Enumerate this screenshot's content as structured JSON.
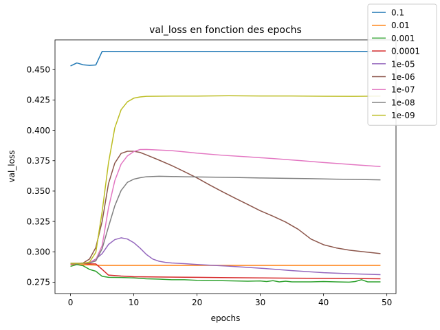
{
  "chart_data": {
    "type": "line",
    "title": "val_loss en fonction des epochs",
    "xlabel": "epochs",
    "ylabel": "val_loss",
    "xlim": [
      -2.45,
      51.45
    ],
    "ylim": [
      0.2656,
      0.4745
    ],
    "xticks": [
      0,
      10,
      20,
      30,
      40,
      50
    ],
    "yticks": [
      0.275,
      0.3,
      0.325,
      0.35,
      0.375,
      0.4,
      0.425,
      0.45
    ],
    "ytick_labels": [
      "0.275",
      "0.300",
      "0.325",
      "0.350",
      "0.375",
      "0.400",
      "0.425",
      "0.450"
    ],
    "grid": false,
    "legend_position": "top-right",
    "series": [
      {
        "name": "0.1",
        "color": "#1f77b4",
        "points": [
          [
            0,
            0.453
          ],
          [
            1,
            0.4555
          ],
          [
            2,
            0.454
          ],
          [
            3,
            0.4535
          ],
          [
            4,
            0.4538
          ],
          [
            5,
            0.465
          ],
          [
            49,
            0.465
          ]
        ]
      },
      {
        "name": "0.01",
        "color": "#ff7f0e",
        "points": [
          [
            0,
            0.2895
          ],
          [
            1,
            0.2895
          ],
          [
            2,
            0.2893
          ],
          [
            3,
            0.2892
          ],
          [
            4,
            0.289
          ],
          [
            5,
            0.2888
          ],
          [
            49,
            0.2888
          ]
        ]
      },
      {
        "name": "0.001",
        "color": "#2ca02c",
        "points": [
          [
            0,
            0.288
          ],
          [
            1,
            0.2895
          ],
          [
            2,
            0.2885
          ],
          [
            3,
            0.2855
          ],
          [
            4,
            0.284
          ],
          [
            5,
            0.2798
          ],
          [
            6,
            0.279
          ],
          [
            8,
            0.2788
          ],
          [
            10,
            0.2785
          ],
          [
            12,
            0.2778
          ],
          [
            14,
            0.2775
          ],
          [
            16,
            0.277
          ],
          [
            18,
            0.277
          ],
          [
            20,
            0.2765
          ],
          [
            24,
            0.2762
          ],
          [
            28,
            0.2758
          ],
          [
            30,
            0.276
          ],
          [
            31,
            0.2755
          ],
          [
            32,
            0.2762
          ],
          [
            33,
            0.2752
          ],
          [
            34,
            0.2758
          ],
          [
            35,
            0.2752
          ],
          [
            38,
            0.2752
          ],
          [
            40,
            0.2755
          ],
          [
            42,
            0.2752
          ],
          [
            44,
            0.275
          ],
          [
            45,
            0.2755
          ],
          [
            46,
            0.277
          ],
          [
            47,
            0.2752
          ],
          [
            49,
            0.2752
          ]
        ]
      },
      {
        "name": "0.0001",
        "color": "#d62728",
        "points": [
          [
            0,
            0.2905
          ],
          [
            1,
            0.2905
          ],
          [
            2,
            0.2903
          ],
          [
            3,
            0.29
          ],
          [
            4,
            0.29
          ],
          [
            5,
            0.2855
          ],
          [
            6,
            0.2808
          ],
          [
            8,
            0.28
          ],
          [
            10,
            0.2795
          ],
          [
            15,
            0.2792
          ],
          [
            20,
            0.279
          ],
          [
            25,
            0.2787
          ],
          [
            30,
            0.2785
          ],
          [
            35,
            0.2783
          ],
          [
            40,
            0.2781
          ],
          [
            45,
            0.278
          ],
          [
            49,
            0.2778
          ]
        ]
      },
      {
        "name": "1e-05",
        "color": "#9467bd",
        "points": [
          [
            0,
            0.29
          ],
          [
            1,
            0.2902
          ],
          [
            2,
            0.2905
          ],
          [
            3,
            0.291
          ],
          [
            4,
            0.294
          ],
          [
            5,
            0.2985
          ],
          [
            6,
            0.306
          ],
          [
            7,
            0.31
          ],
          [
            8,
            0.3115
          ],
          [
            9,
            0.3105
          ],
          [
            10,
            0.3075
          ],
          [
            11,
            0.303
          ],
          [
            12,
            0.2978
          ],
          [
            13,
            0.294
          ],
          [
            14,
            0.2922
          ],
          [
            15,
            0.2913
          ],
          [
            16,
            0.2908
          ],
          [
            18,
            0.2902
          ],
          [
            20,
            0.2895
          ],
          [
            25,
            0.2882
          ],
          [
            30,
            0.2865
          ],
          [
            35,
            0.2845
          ],
          [
            40,
            0.2828
          ],
          [
            45,
            0.2818
          ],
          [
            49,
            0.2812
          ]
        ]
      },
      {
        "name": "1e-06",
        "color": "#8c564b",
        "points": [
          [
            0,
            0.2905
          ],
          [
            1,
            0.2905
          ],
          [
            2,
            0.2908
          ],
          [
            3,
            0.294
          ],
          [
            4,
            0.3035
          ],
          [
            5,
            0.325
          ],
          [
            6,
            0.356
          ],
          [
            7,
            0.373
          ],
          [
            8,
            0.381
          ],
          [
            9,
            0.3828
          ],
          [
            10,
            0.3828
          ],
          [
            11,
            0.3818
          ],
          [
            12,
            0.3798
          ],
          [
            14,
            0.3755
          ],
          [
            16,
            0.371
          ],
          [
            18,
            0.366
          ],
          [
            20,
            0.3608
          ],
          [
            22,
            0.355
          ],
          [
            24,
            0.3495
          ],
          [
            26,
            0.3442
          ],
          [
            28,
            0.339
          ],
          [
            30,
            0.3338
          ],
          [
            32,
            0.3293
          ],
          [
            34,
            0.3245
          ],
          [
            36,
            0.3185
          ],
          [
            38,
            0.3105
          ],
          [
            40,
            0.3058
          ],
          [
            42,
            0.3032
          ],
          [
            44,
            0.3014
          ],
          [
            46,
            0.3002
          ],
          [
            49,
            0.2985
          ]
        ]
      },
      {
        "name": "1e-07",
        "color": "#e377c2",
        "points": [
          [
            0,
            0.2905
          ],
          [
            1,
            0.2905
          ],
          [
            2,
            0.2905
          ],
          [
            3,
            0.2912
          ],
          [
            4,
            0.2935
          ],
          [
            5,
            0.305
          ],
          [
            6,
            0.336
          ],
          [
            7,
            0.3585
          ],
          [
            8,
            0.3722
          ],
          [
            9,
            0.379
          ],
          [
            10,
            0.3825
          ],
          [
            11,
            0.3842
          ],
          [
            12,
            0.3843
          ],
          [
            14,
            0.3838
          ],
          [
            16,
            0.3833
          ],
          [
            18,
            0.3823
          ],
          [
            20,
            0.3812
          ],
          [
            24,
            0.3795
          ],
          [
            28,
            0.3782
          ],
          [
            32,
            0.3768
          ],
          [
            36,
            0.3752
          ],
          [
            40,
            0.3735
          ],
          [
            44,
            0.372
          ],
          [
            49,
            0.3702
          ]
        ]
      },
      {
        "name": "1e-08",
        "color": "#7f7f7f",
        "points": [
          [
            0,
            0.2905
          ],
          [
            1,
            0.2905
          ],
          [
            2,
            0.2905
          ],
          [
            3,
            0.2908
          ],
          [
            4,
            0.2925
          ],
          [
            5,
            0.3025
          ],
          [
            6,
            0.3205
          ],
          [
            7,
            0.3378
          ],
          [
            8,
            0.3505
          ],
          [
            9,
            0.3572
          ],
          [
            10,
            0.3598
          ],
          [
            11,
            0.361
          ],
          [
            12,
            0.3618
          ],
          [
            14,
            0.3622
          ],
          [
            18,
            0.3618
          ],
          [
            22,
            0.3615
          ],
          [
            26,
            0.3612
          ],
          [
            30,
            0.3608
          ],
          [
            34,
            0.3605
          ],
          [
            38,
            0.3602
          ],
          [
            42,
            0.3598
          ],
          [
            46,
            0.3595
          ],
          [
            49,
            0.3592
          ]
        ]
      },
      {
        "name": "1e-09",
        "color": "#bcbd22",
        "points": [
          [
            0,
            0.2905
          ],
          [
            1,
            0.2905
          ],
          [
            2,
            0.2905
          ],
          [
            3,
            0.2915
          ],
          [
            4,
            0.2995
          ],
          [
            5,
            0.333
          ],
          [
            6,
            0.373
          ],
          [
            7,
            0.402
          ],
          [
            8,
            0.417
          ],
          [
            9,
            0.4235
          ],
          [
            10,
            0.4265
          ],
          [
            11,
            0.4275
          ],
          [
            12,
            0.428
          ],
          [
            16,
            0.4282
          ],
          [
            20,
            0.4282
          ],
          [
            25,
            0.4285
          ],
          [
            30,
            0.4283
          ],
          [
            35,
            0.4283
          ],
          [
            40,
            0.4281
          ],
          [
            45,
            0.428
          ],
          [
            49,
            0.4282
          ]
        ]
      }
    ]
  }
}
